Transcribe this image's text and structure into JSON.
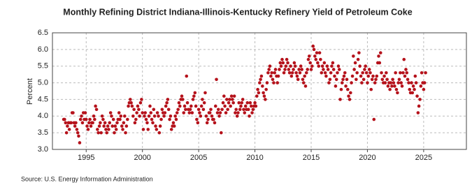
{
  "chart_data": {
    "type": "scatter",
    "title": "Monthly Refining District Indiana-Illinois-Kentucky Refinery Yield of Petroleum Coke",
    "y_label": "Percent",
    "source": "Source: U.S. Energy Information Administration",
    "xlim": [
      1992,
      2028.8
    ],
    "ylim": [
      3.0,
      6.5
    ],
    "xticks": [
      1995,
      2000,
      2005,
      2010,
      2015,
      2020,
      2025
    ],
    "yticks": [
      {
        "value": 3,
        "label": "3.0"
      },
      3.5,
      {
        "value": 4,
        "label": "4.0"
      },
      4.5,
      {
        "value": 5,
        "label": "5.0"
      },
      5.5,
      {
        "value": 6,
        "label": "6.0"
      },
      6.5
    ],
    "grid": true,
    "color": "#b5121b",
    "x": [
      1993.0,
      1993.08,
      1993.17,
      1993.25,
      1993.33,
      1993.42,
      1993.5,
      1993.58,
      1993.67,
      1993.75,
      1993.83,
      1993.92,
      1994.0,
      1994.08,
      1994.17,
      1994.25,
      1994.33,
      1994.42,
      1994.5,
      1994.58,
      1994.67,
      1994.75,
      1994.83,
      1994.92,
      1995.0,
      1995.08,
      1995.17,
      1995.25,
      1995.33,
      1995.42,
      1995.5,
      1995.58,
      1995.67,
      1995.75,
      1995.83,
      1995.92,
      1996.0,
      1996.08,
      1996.17,
      1996.25,
      1996.33,
      1996.42,
      1996.5,
      1996.58,
      1996.67,
      1996.75,
      1996.83,
      1996.92,
      1997.0,
      1997.08,
      1997.17,
      1997.25,
      1997.33,
      1997.42,
      1997.5,
      1997.58,
      1997.67,
      1997.75,
      1997.83,
      1997.92,
      1998.0,
      1998.08,
      1998.17,
      1998.25,
      1998.33,
      1998.42,
      1998.5,
      1998.58,
      1998.67,
      1998.75,
      1998.83,
      1998.92,
      1999.0,
      1999.08,
      1999.17,
      1999.25,
      1999.33,
      1999.42,
      1999.5,
      1999.58,
      1999.67,
      1999.75,
      1999.83,
      1999.92,
      2000.0,
      2000.08,
      2000.17,
      2000.25,
      2000.33,
      2000.42,
      2000.5,
      2000.58,
      2000.67,
      2000.75,
      2000.83,
      2000.92,
      2001.0,
      2001.08,
      2001.17,
      2001.25,
      2001.33,
      2001.42,
      2001.5,
      2001.58,
      2001.67,
      2001.75,
      2001.83,
      2001.92,
      2002.0,
      2002.08,
      2002.17,
      2002.25,
      2002.33,
      2002.42,
      2002.5,
      2002.58,
      2002.67,
      2002.75,
      2002.83,
      2002.92,
      2003.0,
      2003.08,
      2003.17,
      2003.25,
      2003.33,
      2003.42,
      2003.5,
      2003.58,
      2003.67,
      2003.75,
      2003.83,
      2003.92,
      2004.0,
      2004.08,
      2004.17,
      2004.25,
      2004.33,
      2004.42,
      2004.5,
      2004.58,
      2004.67,
      2004.75,
      2004.83,
      2004.92,
      2005.0,
      2005.08,
      2005.17,
      2005.25,
      2005.33,
      2005.42,
      2005.5,
      2005.58,
      2005.67,
      2005.75,
      2005.83,
      2005.92,
      2006.0,
      2006.08,
      2006.17,
      2006.25,
      2006.33,
      2006.42,
      2006.5,
      2006.58,
      2006.67,
      2006.75,
      2006.83,
      2006.92,
      2007.0,
      2007.08,
      2007.17,
      2007.25,
      2007.33,
      2007.42,
      2007.5,
      2007.58,
      2007.67,
      2007.75,
      2007.83,
      2007.92,
      2008.0,
      2008.08,
      2008.17,
      2008.25,
      2008.33,
      2008.42,
      2008.5,
      2008.58,
      2008.67,
      2008.75,
      2008.83,
      2008.92,
      2009.0,
      2009.08,
      2009.17,
      2009.25,
      2009.33,
      2009.42,
      2009.5,
      2009.58,
      2009.67,
      2009.75,
      2009.83,
      2009.92,
      2010.0,
      2010.08,
      2010.17,
      2010.25,
      2010.33,
      2010.42,
      2010.5,
      2010.58,
      2010.67,
      2010.75,
      2010.83,
      2010.92,
      2011.0,
      2011.08,
      2011.17,
      2011.25,
      2011.33,
      2011.42,
      2011.5,
      2011.58,
      2011.67,
      2011.75,
      2011.83,
      2011.92,
      2012.0,
      2012.08,
      2012.17,
      2012.25,
      2012.33,
      2012.42,
      2012.5,
      2012.58,
      2012.67,
      2012.75,
      2012.83,
      2012.92,
      2013.0,
      2013.08,
      2013.17,
      2013.25,
      2013.33,
      2013.42,
      2013.5,
      2013.58,
      2013.67,
      2013.75,
      2013.83,
      2013.92,
      2014.0,
      2014.08,
      2014.17,
      2014.25,
      2014.33,
      2014.42,
      2014.5,
      2014.58,
      2014.67,
      2014.75,
      2014.83,
      2014.92,
      2015.0,
      2015.08,
      2015.17,
      2015.25,
      2015.33,
      2015.42,
      2015.5,
      2015.58,
      2015.67,
      2015.75,
      2015.83,
      2015.92,
      2016.0,
      2016.08,
      2016.17,
      2016.25,
      2016.33,
      2016.42,
      2016.5,
      2016.58,
      2016.67,
      2016.75,
      2016.83,
      2016.92,
      2017.0,
      2017.08,
      2017.17,
      2017.25,
      2017.33,
      2017.42,
      2017.5,
      2017.58,
      2017.67,
      2017.75,
      2017.83,
      2017.92,
      2018.0,
      2018.08,
      2018.17,
      2018.25,
      2018.33,
      2018.42,
      2018.5,
      2018.58,
      2018.67,
      2018.75,
      2018.83,
      2018.92,
      2019.0,
      2019.08,
      2019.17,
      2019.25,
      2019.33,
      2019.42,
      2019.5,
      2019.58,
      2019.67,
      2019.75,
      2019.83,
      2019.92,
      2020.0,
      2020.08,
      2020.17,
      2020.25,
      2020.33,
      2020.42,
      2020.5,
      2020.58,
      2020.67,
      2020.75,
      2020.83,
      2020.92,
      2021.0,
      2021.08,
      2021.17,
      2021.25,
      2021.33,
      2021.42,
      2021.5,
      2021.58,
      2021.67,
      2021.75,
      2021.83,
      2021.92,
      2022.0,
      2022.08,
      2022.17,
      2022.25,
      2022.33,
      2022.42,
      2022.5,
      2022.58,
      2022.67,
      2022.75,
      2022.83,
      2022.92,
      2023.0,
      2023.08,
      2023.17,
      2023.25,
      2023.33,
      2023.42,
      2023.5,
      2023.58,
      2023.67,
      2023.75,
      2023.83,
      2023.92,
      2024.0,
      2024.08,
      2024.17,
      2024.25,
      2024.33,
      2024.42,
      2024.5,
      2024.58,
      2024.67,
      2024.75,
      2024.83,
      2024.92,
      2025.0,
      2025.08,
      2025.17
    ],
    "values": [
      3.9,
      3.9,
      3.8,
      3.5,
      3.7,
      3.8,
      3.6,
      3.8,
      3.8,
      4.1,
      4.1,
      3.8,
      3.7,
      3.8,
      3.6,
      3.5,
      3.4,
      3.2,
      3.9,
      4.0,
      3.8,
      4.1,
      3.9,
      4.1,
      3.9,
      3.7,
      3.6,
      3.8,
      3.9,
      3.7,
      3.8,
      3.8,
      4.0,
      3.9,
      4.3,
      4.2,
      3.6,
      3.5,
      3.7,
      3.8,
      3.5,
      4.0,
      3.9,
      3.7,
      3.8,
      3.6,
      3.5,
      3.7,
      3.6,
      3.8,
      4.1,
      4.0,
      3.7,
      3.9,
      3.5,
      3.7,
      3.6,
      3.8,
      3.9,
      4.1,
      3.9,
      4.0,
      3.7,
      3.6,
      3.8,
      4.0,
      3.5,
      3.7,
      3.9,
      4.3,
      4.4,
      4.5,
      4.4,
      4.3,
      4.0,
      4.2,
      3.8,
      3.9,
      4.1,
      4.3,
      4.2,
      4.0,
      4.4,
      4.5,
      4.1,
      3.6,
      4.0,
      4.1,
      3.9,
      3.8,
      3.6,
      4.0,
      4.3,
      4.1,
      3.9,
      3.8,
      4.2,
      4.0,
      3.7,
      3.6,
      4.1,
      4.0,
      3.5,
      3.7,
      3.9,
      4.2,
      4.1,
      4.0,
      4.1,
      4.3,
      4.4,
      4.5,
      4.2,
      3.9,
      4.0,
      3.6,
      3.7,
      3.8,
      3.7,
      4.0,
      3.9,
      4.1,
      4.2,
      4.4,
      4.3,
      4.5,
      4.6,
      4.5,
      4.1,
      4.3,
      4.2,
      5.2,
      4.4,
      4.2,
      4.1,
      4.2,
      4.3,
      4.1,
      4.5,
      4.6,
      4.7,
      4.3,
      3.9,
      3.8,
      4.2,
      4.1,
      4.0,
      4.3,
      4.5,
      4.2,
      4.4,
      4.7,
      4.0,
      3.8,
      3.9,
      4.1,
      4.1,
      4.2,
      4.0,
      3.9,
      3.9,
      3.8,
      4.3,
      5.1,
      4.1,
      4.2,
      4.0,
      4.1,
      3.5,
      4.2,
      4.4,
      4.6,
      4.3,
      4.1,
      4.5,
      4.2,
      4.4,
      4.5,
      4.3,
      4.6,
      4.5,
      4.4,
      4.6,
      4.1,
      4.2,
      4.0,
      4.1,
      4.4,
      4.2,
      4.3,
      4.4,
      4.5,
      4.2,
      4.1,
      4.3,
      4.2,
      4.4,
      4.2,
      4.0,
      4.4,
      4.3,
      4.1,
      4.2,
      4.3,
      4.4,
      4.3,
      4.6,
      4.8,
      4.7,
      5.0,
      5.1,
      5.2,
      4.9,
      4.7,
      4.6,
      4.5,
      4.8,
      5.0,
      5.3,
      5.4,
      5.5,
      5.2,
      5.3,
      5.1,
      5.0,
      5.3,
      5.4,
      5.2,
      5.0,
      5.2,
      5.4,
      5.6,
      5.5,
      5.7,
      5.6,
      5.3,
      5.4,
      5.5,
      5.7,
      5.6,
      5.4,
      5.3,
      5.5,
      5.2,
      5.3,
      5.4,
      5.6,
      5.5,
      5.3,
      5.2,
      5.1,
      5.4,
      5.3,
      5.5,
      5.4,
      5.1,
      5.0,
      5.2,
      4.9,
      5.3,
      5.4,
      5.7,
      5.8,
      5.6,
      5.4,
      5.5,
      6.1,
      6.0,
      5.8,
      5.7,
      5.9,
      5.6,
      5.5,
      5.9,
      5.7,
      5.3,
      5.5,
      5.4,
      5.6,
      5.3,
      5.2,
      5.5,
      5.4,
      5.0,
      5.1,
      5.3,
      5.5,
      5.6,
      5.4,
      5.2,
      4.9,
      5.1,
      5.3,
      5.5,
      5.4,
      4.5,
      4.8,
      5.0,
      5.1,
      5.2,
      5.3,
      4.9,
      5.1,
      4.8,
      4.6,
      4.5,
      4.7,
      5.0,
      5.2,
      5.8,
      5.4,
      5.6,
      5.1,
      5.3,
      5.7,
      5.9,
      5.5,
      5.2,
      5.0,
      5.3,
      5.1,
      5.4,
      5.5,
      5.3,
      5.0,
      5.2,
      5.4,
      5.3,
      4.8,
      5.1,
      5.2,
      3.9,
      5.0,
      5.1,
      5.2,
      5.6,
      5.8,
      5.6,
      5.9,
      5.3,
      5.1,
      5.0,
      5.2,
      5.0,
      5.3,
      5.1,
      4.9,
      5.0,
      4.8,
      5.0,
      4.9,
      5.1,
      5.0,
      4.9,
      5.3,
      4.8,
      4.7,
      5.0,
      5.1,
      5.3,
      5.0,
      4.9,
      5.3,
      5.7,
      5.2,
      5.4,
      5.3,
      5.1,
      5.0,
      4.8,
      4.7,
      5.0,
      4.7,
      4.9,
      4.8,
      5.2,
      5.0,
      4.6,
      4.1,
      4.3,
      4.5,
      4.9,
      5.3,
      5.0,
      4.8,
      5.0,
      5.3
    ]
  }
}
